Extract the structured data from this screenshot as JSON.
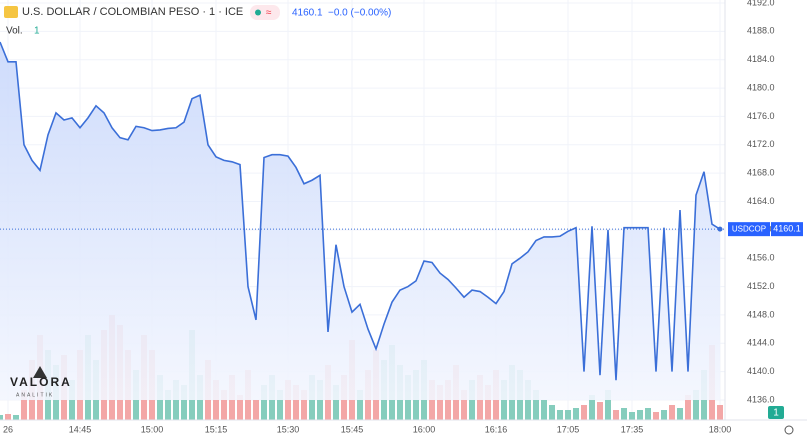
{
  "chart_data": {
    "type": "area",
    "title": "U.S. DOLLAR / COLOMBIAN PESO · 1 · ICE",
    "last": "4160.1",
    "change": "−0.0 (−0.00%)",
    "categories": [
      null,
      "26",
      null,
      null,
      null,
      null,
      null,
      null,
      null,
      null,
      "14:45",
      null,
      null,
      null,
      null,
      null,
      null,
      null,
      null,
      "15:00",
      null,
      null,
      null,
      null,
      null,
      null,
      null,
      "15:15",
      null,
      null,
      null,
      null,
      null,
      null,
      null,
      null,
      "15:30",
      null,
      null,
      null,
      null,
      null,
      null,
      null,
      "15:45",
      null,
      null,
      null,
      null,
      null,
      null,
      null,
      null,
      "16:00",
      null,
      null,
      null,
      null,
      null,
      null,
      null,
      null,
      "16:16",
      null,
      null,
      null,
      null,
      null,
      null,
      null,
      null,
      "17:05",
      null,
      null,
      null,
      null,
      null,
      null,
      null,
      "17:35",
      null,
      null,
      null,
      null,
      null,
      null,
      null,
      null,
      null,
      null,
      "18:00"
    ],
    "series": [
      {
        "name": "USDCOP",
        "color": "#3b6fd8",
        "values": [
          4186.5,
          4183.7,
          4183.7,
          4172.0,
          4169.8,
          4168.4,
          4173.4,
          4176.5,
          4175.5,
          4175.8,
          4174.4,
          4175.8,
          4177.5,
          4176.5,
          4174.4,
          4173.0,
          4172.7,
          4174.6,
          4174.4,
          4174.0,
          4174.1,
          4174.3,
          4174.4,
          4175.2,
          4178.5,
          4179.0,
          4172.0,
          4170.3,
          4169.8,
          4169.6,
          4169.2,
          4152.0,
          4147.3,
          4170.2,
          4170.6,
          4170.6,
          4170.4,
          4168.8,
          4166.5,
          4167.0,
          4167.7,
          4145.6,
          4157.9,
          4152.0,
          4148.4,
          4149.5,
          4146.0,
          4143.2,
          4146.7,
          4149.8,
          4151.5,
          4152.0,
          4152.8,
          4155.6,
          4155.4,
          4153.9,
          4153.0,
          4151.8,
          4150.5,
          4151.5,
          4151.3,
          4150.5,
          4149.6,
          4151.3,
          4155.2,
          4156.0,
          4156.9,
          4158.5,
          4159.0,
          4159.0,
          4159.1,
          4159.8,
          4160.3,
          4140.0,
          4160.5,
          4139.5,
          4160.0,
          4138.8,
          4160.3,
          4160.3,
          4160.3,
          4160.3,
          4140.0,
          4160.3,
          4140.0,
          4162.8,
          4140.0,
          4164.9,
          4168.2,
          4160.8,
          4160.1
        ]
      }
    ],
    "volume": {
      "name": "Vol.",
      "legend_value": "1",
      "up_color": "#86cdbd",
      "down_color": "#f3a7a7",
      "values": [
        5,
        6,
        5,
        30,
        60,
        85,
        70,
        55,
        65,
        40,
        70,
        85,
        60,
        90,
        105,
        95,
        70,
        50,
        85,
        70,
        45,
        30,
        40,
        35,
        90,
        45,
        60,
        40,
        30,
        45,
        25,
        50,
        20,
        35,
        45,
        30,
        40,
        35,
        30,
        45,
        40,
        55,
        35,
        45,
        80,
        30,
        50,
        70,
        60,
        75,
        55,
        45,
        50,
        60,
        40,
        35,
        40,
        55,
        30,
        40,
        45,
        35,
        50,
        40,
        55,
        50,
        40,
        30,
        20,
        15,
        10,
        10,
        12,
        15,
        25,
        18,
        30,
        10,
        12,
        8,
        10,
        12,
        8,
        10,
        15,
        12,
        25,
        30,
        50,
        75,
        15
      ]
    },
    "price_label": {
      "symbol": "USDCOP",
      "value": 4160.1,
      "label": "4160.1"
    },
    "ylim": [
      4136,
      4192
    ],
    "yticks": [
      {
        "value": 4136,
        "label": "4136.0"
      },
      {
        "value": 4140,
        "label": "4140.0"
      },
      {
        "value": 4144,
        "label": "4144.0"
      },
      {
        "value": 4148,
        "label": "4148.0"
      },
      {
        "value": 4152,
        "label": "4152.0"
      },
      {
        "value": 4156,
        "label": "4156.0"
      },
      {
        "value": 4160,
        "label": "4160.0"
      },
      {
        "value": 4164,
        "label": "4164.0"
      },
      {
        "value": 4168,
        "label": "4168.0"
      },
      {
        "value": 4172,
        "label": "4172.0"
      },
      {
        "value": 4176,
        "label": "4176.0"
      },
      {
        "value": 4180,
        "label": "4180.0"
      },
      {
        "value": 4184,
        "label": "4184.0"
      },
      {
        "value": 4188,
        "label": "4188.0"
      },
      {
        "value": 4192,
        "label": "4192.0"
      }
    ],
    "logo": {
      "name": "VALORA",
      "sub": "ANALITIK"
    },
    "scale_badge": "1"
  }
}
